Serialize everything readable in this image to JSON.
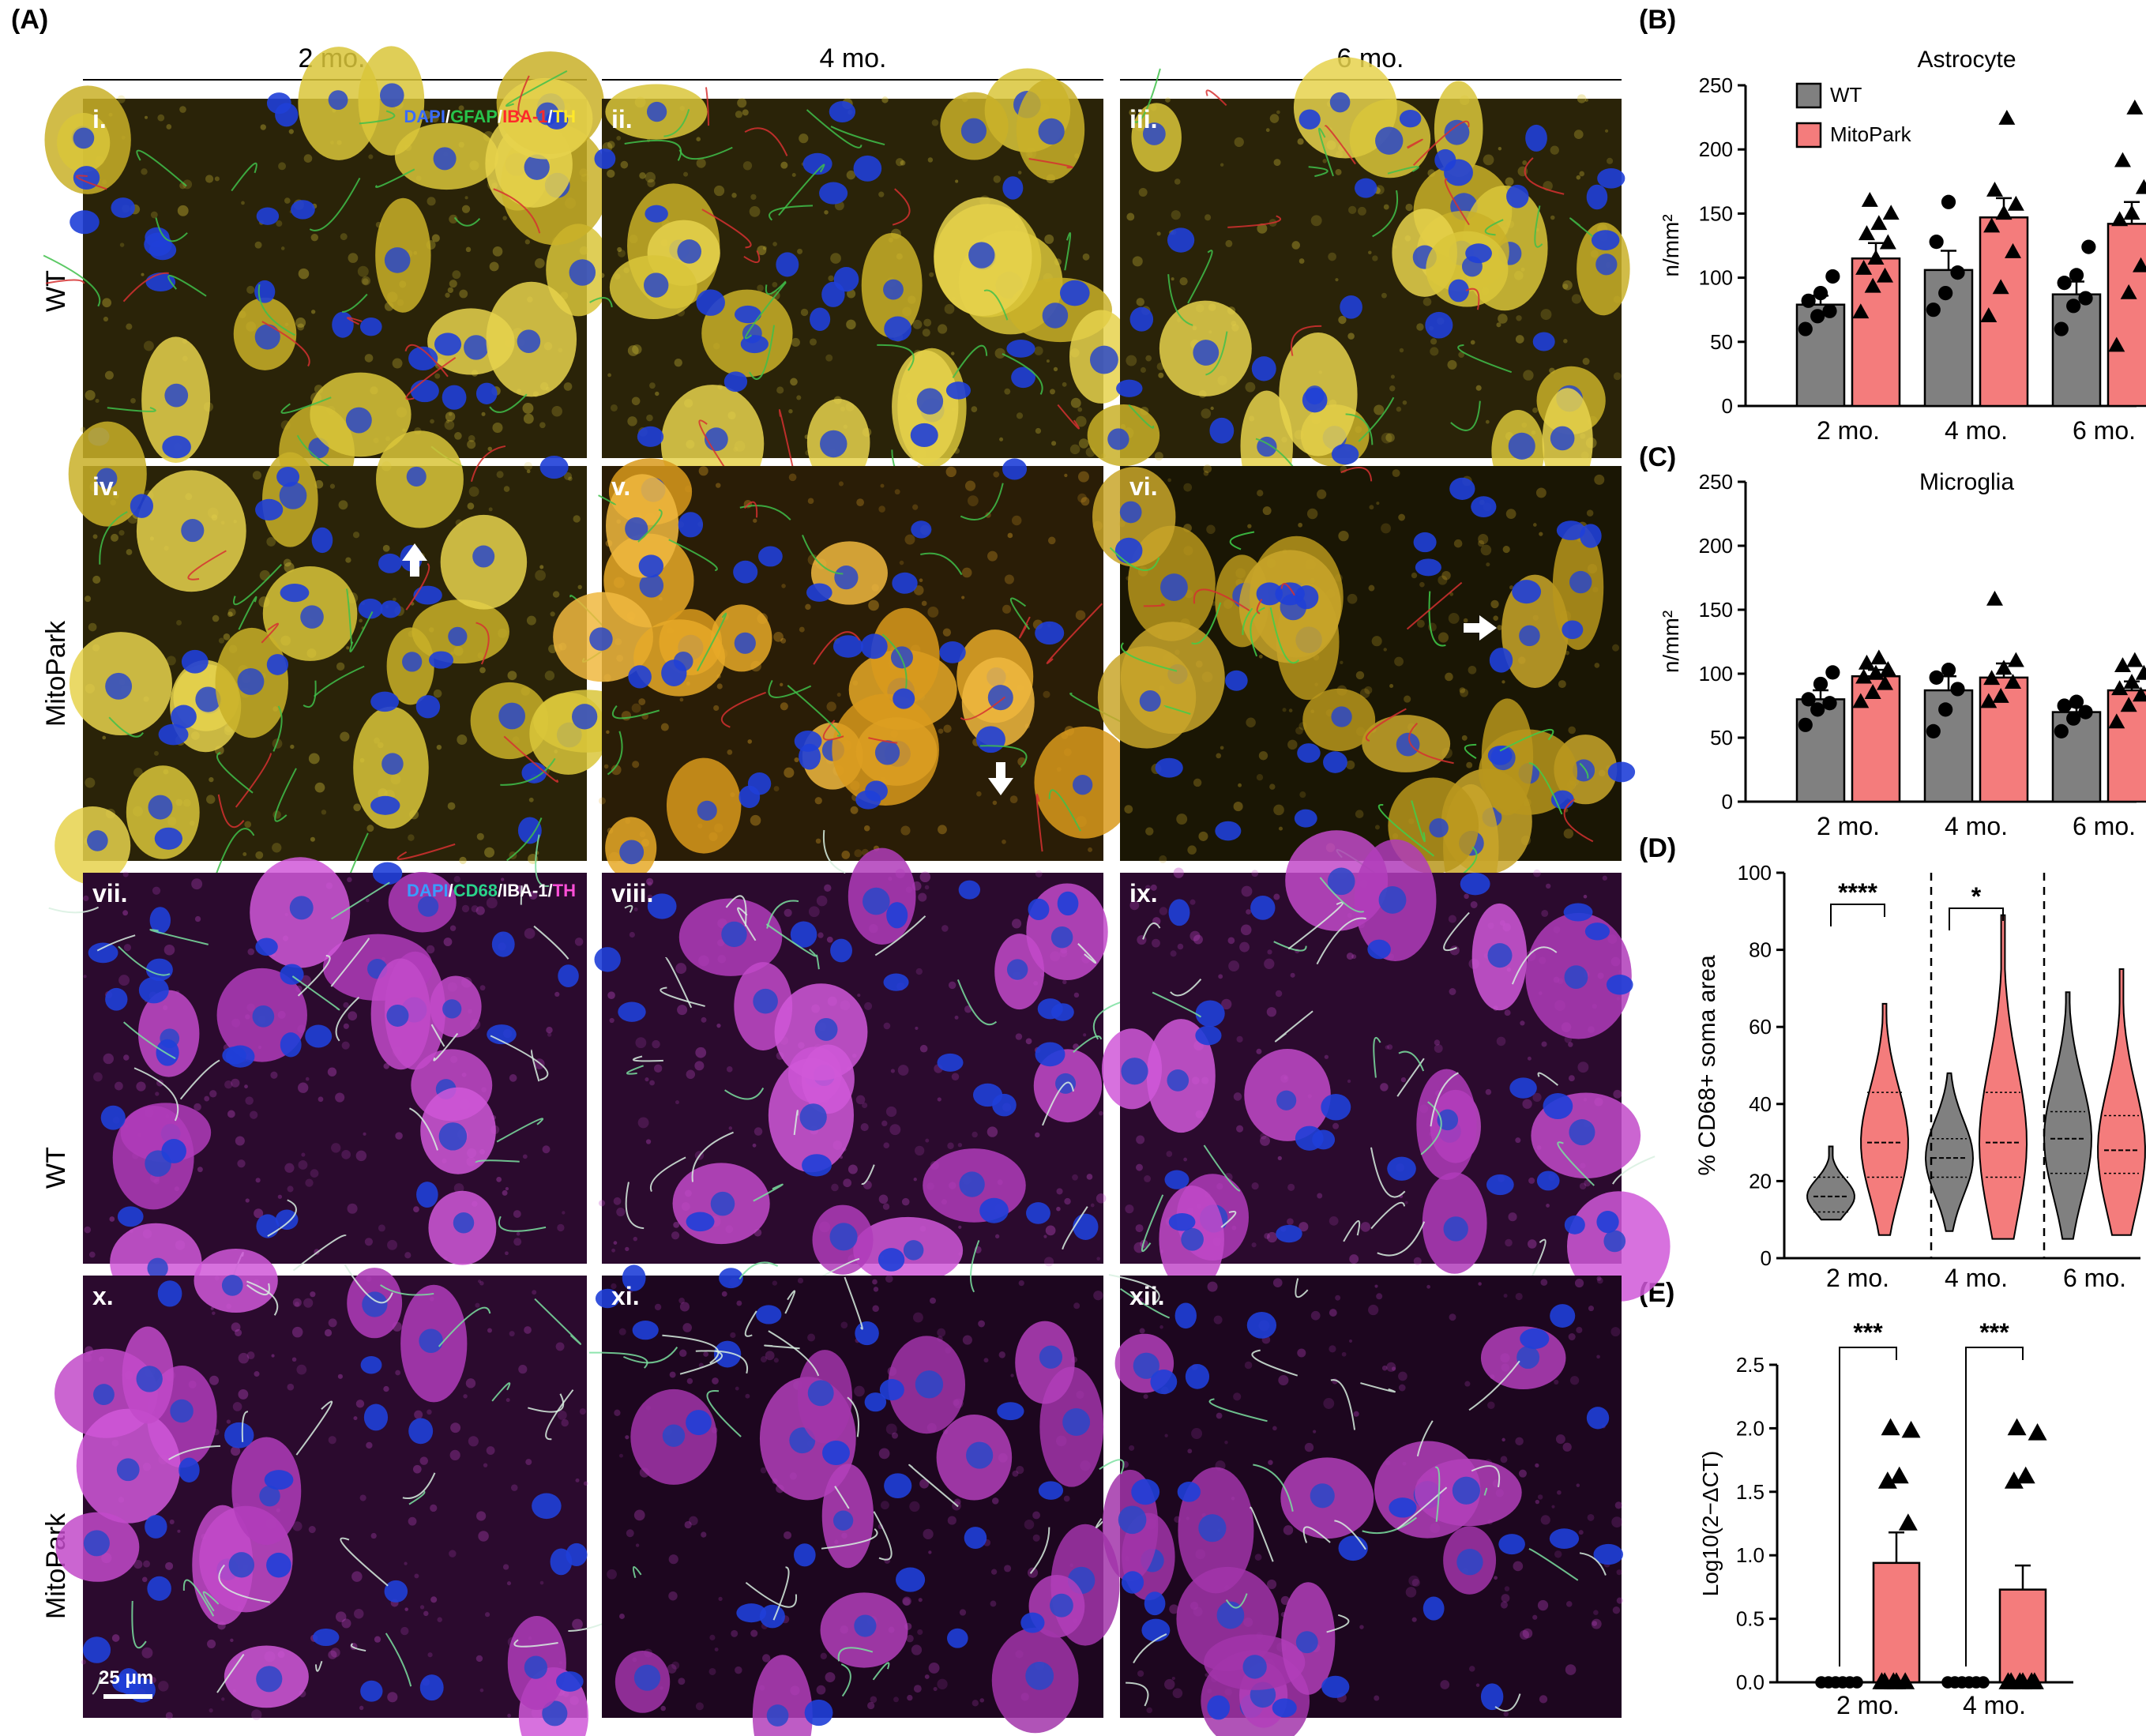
{
  "panels": {
    "A": "(A)",
    "B": "(B)",
    "C": "(C)",
    "D": "(D)",
    "E": "(E)"
  },
  "columns": [
    "2 mo.",
    "4 mo.",
    "6 mo."
  ],
  "rows": [
    "WT",
    "MitoPark",
    "WT",
    "MitoPark"
  ],
  "tiles": [
    {
      "label": "i.",
      "stain": "yellow"
    },
    {
      "label": "ii.",
      "stain": "yellow"
    },
    {
      "label": "iii.",
      "stain": "yellow"
    },
    {
      "label": "iv.",
      "stain": "yellow"
    },
    {
      "label": "v.",
      "stain": "orange"
    },
    {
      "label": "vi.",
      "stain": "dark"
    },
    {
      "label": "vii.",
      "stain": "magenta"
    },
    {
      "label": "viii.",
      "stain": "magenta"
    },
    {
      "label": "ix.",
      "stain": "magenta"
    },
    {
      "label": "x.",
      "stain": "magenta"
    },
    {
      "label": "xi.",
      "stain": "magentadark"
    },
    {
      "label": "xii.",
      "stain": "magentadark"
    }
  ],
  "stain_legend_1": [
    {
      "text": "DAPI",
      "color": "#3a6cff"
    },
    {
      "text": "/",
      "color": "#ffffff"
    },
    {
      "text": "GFAP",
      "color": "#27c24a"
    },
    {
      "text": "/",
      "color": "#ffffff"
    },
    {
      "text": "IBA-1",
      "color": "#ff2a2a"
    },
    {
      "text": "/",
      "color": "#ffffff"
    },
    {
      "text": "TH",
      "color": "#ffe82a"
    }
  ],
  "stain_legend_2": [
    {
      "text": "DAPI",
      "color": "#3a9cff"
    },
    {
      "text": "/",
      "color": "#ffffff"
    },
    {
      "text": "CD68",
      "color": "#2ad38a"
    },
    {
      "text": "/IBA-1/",
      "color": "#ffffff"
    },
    {
      "text": "TH",
      "color": "#ff4fd8"
    }
  ],
  "scale_bar": "25 μm",
  "colors": {
    "wt": "#808080",
    "mitopark": "#f47c7c",
    "yellow": "#d8c23a",
    "magenta": "#c04ac8",
    "nucleus": "#1f3fd8"
  },
  "chart_data": [
    {
      "id": "B",
      "type": "bar",
      "title": "Astrocyte",
      "ylabel": "n/mm²",
      "categories": [
        "2 mo.",
        "4 mo.",
        "6 mo."
      ],
      "ylim": [
        0,
        250
      ],
      "yticks": [
        0,
        50,
        100,
        150,
        200,
        250
      ],
      "legend": [
        "WT",
        "MitoPark"
      ],
      "series": [
        {
          "name": "WT",
          "values": [
            79,
            106,
            87
          ],
          "sem": [
            7,
            15,
            10
          ],
          "points": [
            [
              60,
              70,
              74,
              82,
              88,
              101
            ],
            [
              75,
              88,
              104,
              128,
              159
            ],
            [
              60,
              78,
              84,
              96,
              102,
              124
            ]
          ]
        },
        {
          "name": "MitoPark",
          "values": [
            115,
            147,
            142
          ],
          "sem": [
            12,
            15,
            17
          ],
          "points": [
            [
              73,
              93,
              101,
              107,
              115,
              127,
              134,
              142,
              150,
              160
            ],
            [
              70,
              92,
              120,
              140,
              150,
              157,
              168,
              224
            ],
            [
              47,
              88,
              109,
              145,
              150,
              170,
              191,
              232
            ]
          ]
        }
      ]
    },
    {
      "id": "C",
      "type": "bar",
      "title": "Microglia",
      "ylabel": "n/mm²",
      "categories": [
        "2 mo.",
        "4 mo.",
        "6 mo."
      ],
      "ylim": [
        0,
        250
      ],
      "yticks": [
        0,
        50,
        100,
        150,
        200,
        250
      ],
      "series": [
        {
          "name": "WT",
          "values": [
            80,
            87,
            70
          ],
          "sem": [
            7,
            11,
            4
          ],
          "points": [
            [
              60,
              72,
              77,
              80,
              92,
              101
            ],
            [
              55,
              72,
              88,
              97,
              103
            ],
            [
              55,
              65,
              70,
              75,
              78
            ]
          ]
        },
        {
          "name": "MitoPark",
          "values": [
            98,
            97,
            87
          ],
          "sem": [
            5,
            11,
            7
          ],
          "points": [
            [
              78,
              85,
              92,
              97,
              100,
              103,
              108,
              112
            ],
            [
              78,
              82,
              93,
              96,
              104,
              110,
              158
            ],
            [
              62,
              75,
              83,
              88,
              93,
              100,
              106,
              110
            ]
          ]
        }
      ]
    },
    {
      "id": "D",
      "type": "violin",
      "ylabel": "% CD68+ soma area",
      "categories": [
        "2 mo.",
        "4 mo.",
        "6 mo."
      ],
      "ylim": [
        0,
        100
      ],
      "yticks": [
        0,
        20,
        40,
        60,
        80,
        100
      ],
      "series": [
        {
          "name": "WT",
          "min": [
            10,
            7,
            5
          ],
          "max": [
            29,
            48,
            69
          ],
          "median": [
            16,
            26,
            31
          ],
          "q1": [
            12,
            21,
            22
          ],
          "q3": [
            21,
            31,
            38
          ]
        },
        {
          "name": "MitoPark",
          "min": [
            6,
            5,
            6
          ],
          "max": [
            66,
            89,
            75
          ],
          "median": [
            30,
            30,
            28
          ],
          "q1": [
            21,
            21,
            22
          ],
          "q3": [
            43,
            43,
            37
          ]
        }
      ],
      "significance": [
        {
          "label": "****",
          "group": "2 mo."
        },
        {
          "label": "*",
          "group": "4 mo."
        }
      ]
    },
    {
      "id": "E",
      "type": "bar",
      "ylabel": "Log10(2−ΔCT)",
      "categories": [
        "2 mo.",
        "4 mo."
      ],
      "ylim": [
        0,
        2.5
      ],
      "yticks": [
        "0.0",
        "0.5",
        "1.0",
        "1.5",
        "2.0",
        "2.5"
      ],
      "series": [
        {
          "name": "WT",
          "values": [
            0,
            0
          ],
          "sem": [
            0,
            0
          ]
        },
        {
          "name": "MitoPark",
          "values": [
            0.94,
            0.73
          ],
          "sem": [
            0.24,
            0.19
          ],
          "points": [
            [
              0,
              0,
              0,
              0,
              0,
              1.25,
              1.58,
              1.62,
              1.98,
              2.0
            ],
            [
              0,
              0,
              0,
              0,
              0,
              0,
              1.58,
              1.62,
              1.96,
              2.0
            ]
          ]
        }
      ],
      "significance": [
        {
          "label": "***",
          "group": "2 mo."
        },
        {
          "label": "***",
          "group": "4 mo."
        }
      ]
    }
  ]
}
